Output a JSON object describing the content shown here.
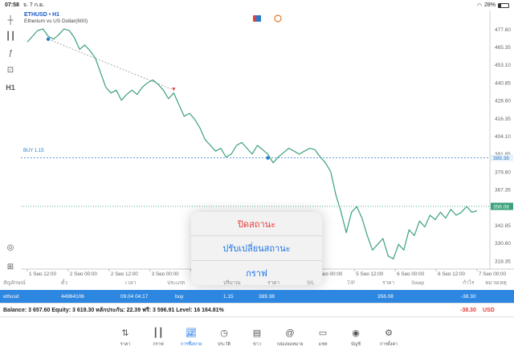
{
  "status_bar": {
    "time": "07:58",
    "date": "จ. 7 ก.ย.",
    "battery": "28%"
  },
  "chart": {
    "symbol": "ETHUSD • H1",
    "subtitle": "Etherium vs US Dollar(600)",
    "buy_label": "BUY 1.15",
    "price_axis": [
      "477.60",
      "465.35",
      "453.10",
      "440.85",
      "428.60",
      "416.35",
      "404.10",
      "391.85",
      "379.60",
      "367.35",
      "355.10",
      "342.85",
      "330.60",
      "318.35"
    ],
    "current_price": "356.08",
    "buy_price_tag": "389.38",
    "time_axis": [
      "1 Sep 12:00",
      "2 Sep 00:00",
      "2 Sep 12:00",
      "3 Sep 00:00",
      "3 Sep 12:00",
      "4 Sep 00:00",
      "4 Sep 12:00",
      "5 Sep 00:00",
      "5 Sep 12:00",
      "6 Sep 00:00",
      "6 Sep 12:00",
      "7 Sep 00:00"
    ],
    "colors": {
      "line": "#3aa17a",
      "buy_line": "#2a7ac8",
      "bid_line": "#3aa17a",
      "price_tag": "#3aa17a"
    }
  },
  "chart_data": {
    "type": "line",
    "title": "ETHUSD • H1",
    "subtitle": "Etherium vs US Dollar(600)",
    "series": [
      {
        "name": "ETHUSD",
        "values": [
          469,
          473,
          477,
          478,
          473,
          471,
          474,
          478,
          477,
          472,
          464,
          467,
          463,
          458,
          448,
          438,
          434,
          436,
          429,
          433,
          436,
          433,
          438,
          441,
          443,
          440,
          436,
          430,
          434,
          426,
          418,
          420,
          416,
          410,
          402,
          398,
          394,
          396,
          390,
          392,
          398,
          400,
          396,
          392,
          398,
          395,
          392,
          386,
          390,
          393,
          396,
          394,
          392,
          394,
          396,
          395,
          390,
          386,
          380,
          364,
          352,
          338,
          352,
          356,
          348,
          336,
          326,
          330,
          334,
          322,
          320,
          330,
          326,
          340,
          336,
          346,
          342,
          350,
          347,
          352,
          348,
          354,
          350,
          352,
          356,
          352,
          353
        ]
      }
    ],
    "ylim": [
      313,
      483
    ],
    "buy_level": 389.38,
    "current_price": 356.08,
    "markers": [
      {
        "type": "entry",
        "value": 471
      },
      {
        "type": "close",
        "value": 436
      },
      {
        "type": "entry",
        "value": 389.38
      }
    ]
  },
  "popup": {
    "items": [
      "ปิดสถานะ",
      "ปรับเปลี่ยนสถานะ",
      "กราฟ"
    ]
  },
  "positions": {
    "headers": [
      "สัญลักษณ์",
      "ตั๋ว",
      "เวลา",
      "ประเภท",
      "ปริมาณ",
      "ราคา",
      "S/L",
      "T/P",
      "ราคา",
      "Swap",
      "กำไร",
      "หมายเหตุ"
    ],
    "row": {
      "symbol": "ethusd",
      "ticket": "44964106",
      "time": "09.04 04:17",
      "type": "buy",
      "volume": "1.15",
      "open_price": "389.38",
      "current_price": "356.08",
      "profit": "-38.30"
    },
    "balance_line": "Balance: 3 657.60 Equity: 3 619.30 หลักประกัน: 22.39 ฟรี: 3 596.91 Level: 16 164.81%",
    "total_profit": "-38.30",
    "currency": "USD"
  },
  "bottom_nav": {
    "items": [
      {
        "label": "ราคา",
        "icon": "quotes-icon"
      },
      {
        "label": "กราฟ",
        "icon": "chart-icon"
      },
      {
        "label": "การซื้อขาย",
        "icon": "trade-icon"
      },
      {
        "label": "ประวัติ",
        "icon": "history-icon"
      },
      {
        "label": "ข่าว",
        "icon": "news-icon"
      },
      {
        "label": "กล่องจดหมาย",
        "icon": "mailbox-icon"
      },
      {
        "label": "แชท",
        "icon": "chat-icon"
      },
      {
        "label": "บัญชี",
        "icon": "account-icon"
      },
      {
        "label": "การตั้งค่า",
        "icon": "settings-icon"
      }
    ]
  }
}
